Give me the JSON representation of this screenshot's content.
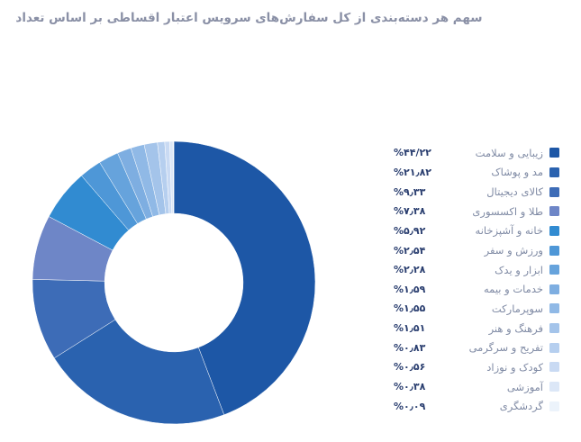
{
  "title": "سهم هر دسته‌بندی از کل سفارش‌های سرویس اعتبار اقساطی بر اساس تعداد",
  "title_color": "#8A90A6",
  "legend_value_color": "#2B3F70",
  "legend_label_color": "#7F8AA4",
  "background_color": "#FFFFFF",
  "chart_data": {
    "type": "pie",
    "subtype": "donut",
    "title": "سهم هر دسته‌بندی از کل سفارش‌های سرویس اعتبار اقساطی بر اساس تعداد",
    "legend_position": "right",
    "direction": "clockwise",
    "start_angle_deg": 0,
    "inner_radius_ratio": 0.49,
    "categories": [
      "زیبایی و سلامت",
      "مد و پوشاک",
      "کالای دیجیتال",
      "طلا و اکسسوری",
      "خانه و آشپزخانه",
      "ورزش و سفر",
      "ابزار و یدک",
      "خدمات و بیمه",
      "سوپرمارکت",
      "فرهنگ و هنر",
      "تفریح و سرگرمی",
      "کودک و نوزاد",
      "آموزشی",
      "گردشگری"
    ],
    "values": [
      44.22,
      21.82,
      9.33,
      7.38,
      5.92,
      2.54,
      2.28,
      1.59,
      1.55,
      1.51,
      0.83,
      0.56,
      0.38,
      0.09
    ],
    "value_labels": [
      "%۴۴/۲۲",
      "%۲۱٫۸۲",
      "%۹٫۳۳",
      "%۷٫۳۸",
      "%۵٫۹۲",
      "%۲٫۵۴",
      "%۲٫۲۸",
      "%۱٫۵۹",
      "%۱٫۵۵",
      "%۱٫۵۱",
      "%۰٫۸۳",
      "%۰٫۵۶",
      "%۰٫۳۸",
      "%۰٫۰۹"
    ],
    "slice_colors": [
      "#1D57A6",
      "#2A62AF",
      "#3D6CB7",
      "#6E86C7",
      "#318BD1",
      "#4E97D7",
      "#66A3DC",
      "#7EAEE1",
      "#90B9E6",
      "#A4C4EA",
      "#B6CFEF",
      "#C9DAF3",
      "#DCE7F7",
      "#ECF3FB"
    ]
  }
}
